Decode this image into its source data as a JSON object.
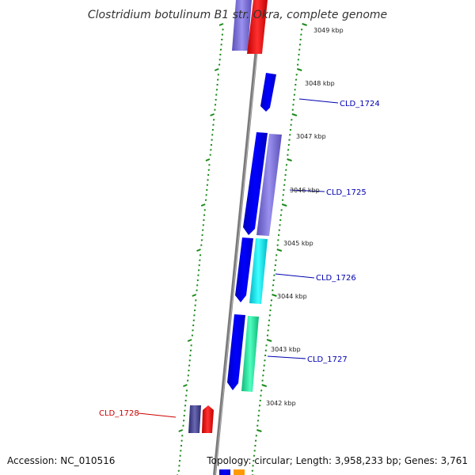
{
  "title": "Clostridium botulinum B1 str. Okra, complete genome",
  "accession": "Accession: NC_010516",
  "topology": "Topology: circular; Length: 3,958,233 bp; Genes: 3,761",
  "ticks": [
    {
      "label": "3049 kbp"
    },
    {
      "label": "3048 kbp"
    },
    {
      "label": "3047 kbp"
    },
    {
      "label": "3046 kbp"
    },
    {
      "label": "3045 kbp"
    },
    {
      "label": "3044 kbp"
    },
    {
      "label": "3043 kbp"
    },
    {
      "label": "3042 kbp"
    }
  ],
  "gene_labels": [
    {
      "text": "CLD_1724",
      "color": "#0000b0"
    },
    {
      "text": "CLD_1725",
      "color": "#0000b0"
    },
    {
      "text": "CLD_1726",
      "color": "#0000b0"
    },
    {
      "text": "CLD_1727",
      "color": "#0000b0"
    },
    {
      "text": "CLD_1728",
      "color": "#cc0000"
    }
  ],
  "colors": {
    "backbone": "#808080",
    "ticks": "#1a8a1a",
    "blue": "#0000e6",
    "purple": "#7a6fd6",
    "cyan": "#00e5f0",
    "seagreen": "#22e6a0",
    "red": "#ff0000",
    "dark_slate": "#4a4890",
    "orange": "#ff9900"
  }
}
